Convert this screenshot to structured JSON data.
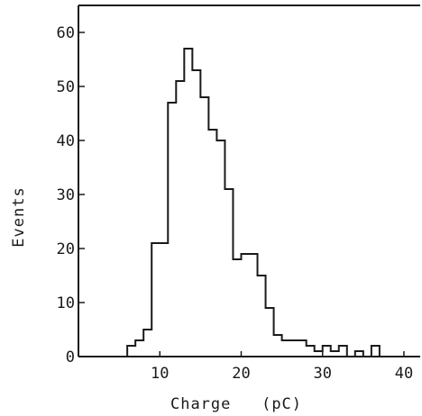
{
  "chart_data": {
    "type": "bar",
    "xlabel": "Charge   (pC)",
    "ylabel": "Events",
    "xlim": [
      0,
      42
    ],
    "ylim": [
      0,
      65
    ],
    "xticks": [
      10,
      20,
      30,
      40
    ],
    "xtick_labels": [
      "10",
      "20",
      "30",
      "40"
    ],
    "yticks": [
      0,
      10,
      20,
      30,
      40,
      50,
      60
    ],
    "ytick_labels": [
      "0",
      "10",
      "20",
      "30",
      "40",
      "50",
      "60"
    ],
    "bin_width": 1,
    "bins": [
      {
        "x0": 6,
        "x1": 7,
        "value": 2
      },
      {
        "x0": 7,
        "x1": 8,
        "value": 3
      },
      {
        "x0": 8,
        "x1": 9,
        "value": 5
      },
      {
        "x0": 9,
        "x1": 10,
        "value": 21
      },
      {
        "x0": 10,
        "x1": 11,
        "value": 21
      },
      {
        "x0": 11,
        "x1": 12,
        "value": 47
      },
      {
        "x0": 12,
        "x1": 13,
        "value": 51
      },
      {
        "x0": 13,
        "x1": 14,
        "value": 57
      },
      {
        "x0": 14,
        "x1": 15,
        "value": 53
      },
      {
        "x0": 15,
        "x1": 16,
        "value": 48
      },
      {
        "x0": 16,
        "x1": 17,
        "value": 42
      },
      {
        "x0": 17,
        "x1": 18,
        "value": 40
      },
      {
        "x0": 18,
        "x1": 19,
        "value": 31
      },
      {
        "x0": 19,
        "x1": 20,
        "value": 18
      },
      {
        "x0": 20,
        "x1": 21,
        "value": 19
      },
      {
        "x0": 21,
        "x1": 22,
        "value": 19
      },
      {
        "x0": 22,
        "x1": 23,
        "value": 15
      },
      {
        "x0": 23,
        "x1": 24,
        "value": 9
      },
      {
        "x0": 24,
        "x1": 25,
        "value": 4
      },
      {
        "x0": 25,
        "x1": 26,
        "value": 3
      },
      {
        "x0": 26,
        "x1": 27,
        "value": 3
      },
      {
        "x0": 27,
        "x1": 28,
        "value": 3
      },
      {
        "x0": 28,
        "x1": 29,
        "value": 2
      },
      {
        "x0": 29,
        "x1": 30,
        "value": 1
      },
      {
        "x0": 30,
        "x1": 31,
        "value": 2
      },
      {
        "x0": 31,
        "x1": 32,
        "value": 1
      },
      {
        "x0": 32,
        "x1": 33,
        "value": 2
      },
      {
        "x0": 33,
        "x1": 34,
        "value": 0
      },
      {
        "x0": 34,
        "x1": 35,
        "value": 1
      },
      {
        "x0": 35,
        "x1": 36,
        "value": 0
      },
      {
        "x0": 36,
        "x1": 37,
        "value": 2
      },
      {
        "x0": 37,
        "x1": 38,
        "value": 0
      }
    ],
    "grid": false,
    "colors": {
      "line": "#1a1a1a",
      "background": "#ffffff"
    }
  }
}
